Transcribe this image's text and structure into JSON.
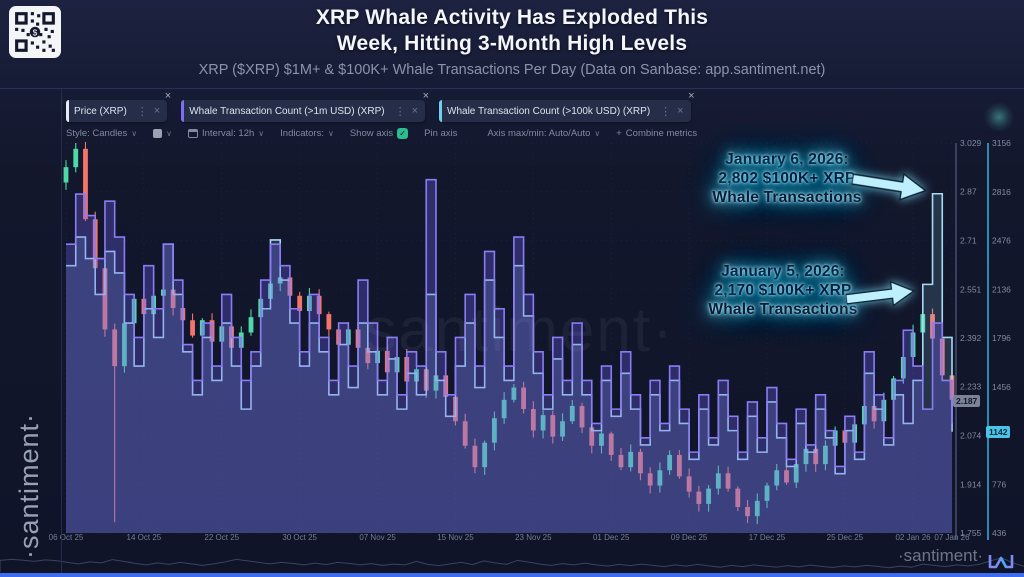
{
  "header": {
    "title_line1": "XRP Whale Activity Has Exploded This",
    "title_line2": "Week, Hitting 3-Month High Levels",
    "subtitle": "XRP ($XRP) $1M+ & $100K+ Whale Transactions Per Day (Data on Sanbase: app.santiment.net)"
  },
  "icons": {
    "close": "×",
    "kebab": "⋮",
    "chevron": "∨",
    "check": "✓",
    "plus": "+"
  },
  "watermarks": {
    "sidebar": "·santiment·",
    "center": "santiment·",
    "bottom_right": "·santiment·"
  },
  "tabs": [
    {
      "label": "Price (XRP)",
      "accent": "#e8ebf2"
    },
    {
      "label": "Whale Transaction Count (>1m USD) (XRP)",
      "accent": "#7d6ef2"
    },
    {
      "label": "Whale Transaction Count (>100k USD) (XRP)",
      "accent": "#6fd0ee"
    }
  ],
  "toolbar": {
    "style_label": "Style: Candles",
    "interval_label": "Interval: 12h",
    "indicators_label": "Indicators:",
    "show_axis_label": "Show axis",
    "pin_axis_label": "Pin axis",
    "axis_maxmin_label": "Axis max/min: Auto/Auto",
    "combine_label": "Combine metrics"
  },
  "annotations": [
    {
      "lines": [
        "January 6, 2026:",
        "2,802 $100K+ XRP",
        "Whale Transactions"
      ]
    },
    {
      "lines": [
        "January 5, 2026:",
        "2,170 $100K+ XRP",
        "Whale Transactions"
      ]
    }
  ],
  "chart_data": {
    "type": "candlestick_with_step_areas",
    "interval": "12h",
    "grid": true,
    "legend_position": "tabs-top",
    "price_axis": {
      "min": 1.755,
      "max": 3.029,
      "current": "2.187",
      "ticks": [
        "3.029",
        "2.87",
        "2.71",
        "2.551",
        "2.392",
        "2.233",
        "2.074",
        "1.914",
        "1.755"
      ]
    },
    "tx_axis": {
      "min": 436,
      "max": 3156,
      "current": "1142",
      "ticks": [
        "3156",
        "2816",
        "2476",
        "2136",
        "1796",
        "1456",
        "776",
        "436"
      ]
    },
    "date_ticks": [
      {
        "label": "06 Oct 25",
        "i": 0
      },
      {
        "label": "14 Oct 25",
        "i": 8
      },
      {
        "label": "22 Oct 25",
        "i": 16
      },
      {
        "label": "30 Oct 25",
        "i": 24
      },
      {
        "label": "07 Nov 25",
        "i": 32
      },
      {
        "label": "15 Nov 25",
        "i": 40
      },
      {
        "label": "23 Nov 25",
        "i": 48
      },
      {
        "label": "01 Dec 25",
        "i": 56
      },
      {
        "label": "09 Dec 25",
        "i": 64
      },
      {
        "label": "17 Dec 25",
        "i": 72
      },
      {
        "label": "25 Dec 25",
        "i": 80
      },
      {
        "label": "02 Jan 26",
        "i": 87
      },
      {
        "label": "07 Jan 26",
        "i": 91
      }
    ],
    "series": [
      {
        "name": "Price (XRP)",
        "type": "candles",
        "color_up": "#4fd9a6",
        "color_down": "#f2756b",
        "open_first": 2.9,
        "close": [
          2.95,
          3.01,
          2.78,
          2.62,
          2.42,
          2.3,
          2.44,
          2.52,
          2.47,
          2.53,
          2.55,
          2.49,
          2.45,
          2.4,
          2.45,
          2.38,
          2.43,
          2.36,
          2.41,
          2.46,
          2.52,
          2.57,
          2.59,
          2.53,
          2.48,
          2.53,
          2.47,
          2.42,
          2.37,
          2.42,
          2.36,
          2.31,
          2.35,
          2.28,
          2.33,
          2.25,
          2.29,
          2.22,
          2.27,
          2.2,
          2.12,
          2.04,
          1.97,
          2.05,
          2.13,
          2.19,
          2.23,
          2.16,
          2.09,
          2.14,
          2.07,
          2.12,
          2.17,
          2.1,
          2.04,
          2.08,
          2.01,
          1.97,
          2.02,
          1.95,
          1.91,
          1.96,
          2.01,
          1.94,
          1.89,
          1.85,
          1.9,
          1.95,
          1.9,
          1.84,
          1.81,
          1.86,
          1.91,
          1.96,
          1.92,
          1.98,
          2.03,
          1.98,
          2.04,
          2.09,
          2.05,
          2.11,
          2.17,
          2.12,
          2.19,
          2.26,
          2.33,
          2.41,
          2.47,
          2.39,
          2.27,
          2.19
        ],
        "wick_overrides": {
          "1": {
            "high": 3.029
          },
          "5": {
            "low": 1.79
          }
        }
      },
      {
        "name": "Whale Transaction Count (>1m USD) (XRP)",
        "type": "step-area",
        "stroke": "#8b7cf5",
        "fill": "rgba(109,95,235,0.32)",
        "values": [
          2450,
          2800,
          2650,
          2350,
          2750,
          2500,
          2100,
          1800,
          2300,
          2000,
          2450,
          2200,
          1750,
          1500,
          1900,
          1600,
          2100,
          1800,
          1500,
          1700,
          2200,
          2450,
          2300,
          2000,
          1700,
          2100,
          1800,
          1500,
          1900,
          1600,
          2200,
          1900,
          1500,
          1800,
          1400,
          1700,
          1600,
          2900,
          1700,
          1400,
          1800,
          2100,
          1600,
          2400,
          2000,
          1600,
          2500,
          2100,
          1700,
          1400,
          1800,
          1500,
          1900,
          1500,
          1200,
          1600,
          1300,
          1700,
          1400,
          1100,
          1500,
          1200,
          1600,
          1300,
          1000,
          1400,
          1100,
          1500,
          1250,
          1000,
          1350,
          1100,
          1450,
          1200,
          950,
          1300,
          1050,
          1400,
          1150,
          900,
          1250,
          1000,
          1700,
          1400,
          1100,
          1500,
          1850,
          1600,
          1300,
          1900,
          1500,
          1200
        ]
      },
      {
        "name": "Whale Transaction Count (>100k USD) (XRP)",
        "type": "step-area",
        "stroke": "#a5dcf2",
        "fill": "rgba(140,210,240,0.16)",
        "values": [
          2300,
          2500,
          2350,
          2100,
          2400,
          2250,
          1900,
          1600,
          2000,
          1800,
          2450,
          2100,
          1700,
          1400,
          1800,
          1500,
          1900,
          1600,
          1300,
          1600,
          2000,
          2480,
          2200,
          1900,
          1600,
          1900,
          1700,
          1400,
          1750,
          1450,
          1900,
          1700,
          1400,
          1650,
          1300,
          1550,
          1400,
          2100,
          1500,
          1250,
          1600,
          1900,
          1450,
          2200,
          1800,
          1500,
          2300,
          1950,
          1550,
          1300,
          1650,
          1400,
          1750,
          1400,
          1150,
          1500,
          1250,
          1550,
          1300,
          1050,
          1400,
          1150,
          1500,
          1200,
          950,
          1300,
          1050,
          1400,
          1150,
          950,
          1250,
          1000,
          1350,
          1100,
          900,
          1200,
          1000,
          1300,
          1100,
          850,
          1150,
          950,
          1550,
          1300,
          1050,
          1400,
          1200,
          1500,
          2170,
          2802,
          1800,
          1142
        ]
      }
    ]
  }
}
